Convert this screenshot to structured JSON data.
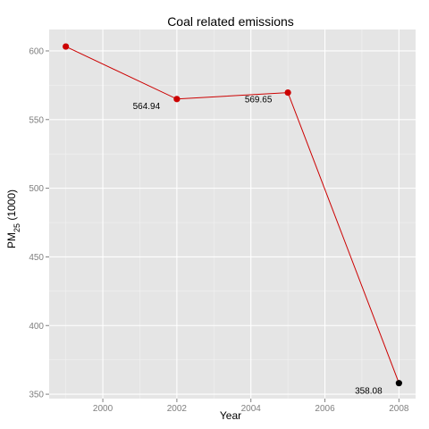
{
  "chart_data": {
    "type": "line",
    "title": "Coal related emissions",
    "xlabel": "Year",
    "ylabel_main": "PM",
    "ylabel_sub": "25",
    "ylabel_suffix": " (1000)",
    "xlim": [
      1998.55,
      2008.45
    ],
    "ylim": [
      346.8,
      615.6
    ],
    "xticks": [
      2000,
      2002,
      2004,
      2006,
      2008
    ],
    "yticks": [
      350,
      400,
      450,
      500,
      550,
      600
    ],
    "grid": true,
    "legend": "none",
    "series": [
      {
        "x": [
          1999,
          2002,
          2005,
          2008
        ],
        "y": [
          603.2,
          564.94,
          569.65,
          358.08
        ],
        "point_colors": [
          "#cc0000",
          "#cc0000",
          "#cc0000",
          "#000000"
        ],
        "data_labels": [
          "",
          "564.94",
          "569.65",
          "358.08"
        ]
      }
    ],
    "colors": {
      "line": "#cc0000",
      "panel": "#e5e5e5",
      "grid_major": "#ffffff",
      "grid_minor": "#f2f2f2"
    }
  }
}
